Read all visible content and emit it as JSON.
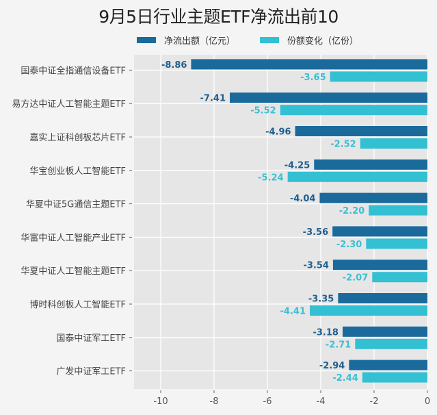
{
  "chart_data": {
    "type": "bar",
    "orientation": "horizontal",
    "title": "9月5日行业主题ETF净流出前10",
    "xlabel": "",
    "ylabel": "",
    "xlim": [
      -11,
      0
    ],
    "x_ticks": [
      "-10",
      "-8",
      "-6",
      "-4",
      "-2",
      "0"
    ],
    "x_tick_values": [
      -10,
      -8,
      -6,
      -4,
      -2,
      0
    ],
    "grid": true,
    "legend_position": "top",
    "categories": [
      "国泰中证全指通信设备ETF",
      "易方达中证人工智能主题ETF",
      "嘉实上证科创板芯片ETF",
      "华宝创业板人工智能ETF",
      "华夏中证5G通信主题ETF",
      "华富中证人工智能产业ETF",
      "华夏中证人工智能主题ETF",
      "博时科创板人工智能ETF",
      "国泰中证军工ETF",
      "广发中证军工ETF"
    ],
    "series": [
      {
        "name": "净流出额（亿元）",
        "color": "#1a6a9c",
        "label_color": "#1f5f8f",
        "values": [
          -8.86,
          -7.41,
          -4.96,
          -4.25,
          -4.04,
          -3.56,
          -3.54,
          -3.35,
          -3.18,
          -2.94
        ],
        "labels": [
          "-8.86",
          "-7.41",
          "-4.96",
          "-4.25",
          "-4.04",
          "-3.56",
          "-3.54",
          "-3.35",
          "-3.18",
          "-2.94"
        ]
      },
      {
        "name": "份额变化（亿份）",
        "color": "#34c0d3",
        "label_color": "#3bbfd3",
        "values": [
          -3.65,
          -5.52,
          -2.52,
          -5.24,
          -2.2,
          -2.3,
          -2.07,
          -4.41,
          -2.71,
          -2.44
        ],
        "labels": [
          "-3.65",
          "-5.52",
          "-2.52",
          "-5.24",
          "-2.20",
          "-2.30",
          "-2.07",
          "-4.41",
          "-2.71",
          "-2.44"
        ]
      }
    ]
  },
  "colors": {
    "plot_background": "#e6e6e6",
    "page_background": "#f4f4f4",
    "grid": "#ffffff"
  }
}
